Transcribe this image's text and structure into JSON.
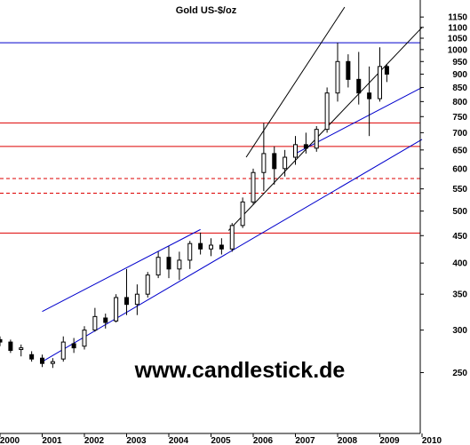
{
  "chart_data": {
    "type": "candlestick",
    "title": "Gold US-$/oz",
    "watermark": "www.candlestick.de",
    "y_scale": "log",
    "ylim": [
      220,
      1200
    ],
    "xlim": [
      "2000-01",
      "2010-01"
    ],
    "grid": false,
    "y_ticks": [
      {
        "v": 250,
        "label": "250"
      },
      {
        "v": 300,
        "label": "300"
      },
      {
        "v": 350,
        "label": "350"
      },
      {
        "v": 400,
        "label": "400"
      },
      {
        "v": 450,
        "label": "450"
      },
      {
        "v": 500,
        "label": "500"
      },
      {
        "v": 550,
        "label": "550"
      },
      {
        "v": 600,
        "label": "600"
      },
      {
        "v": 650,
        "label": "650"
      },
      {
        "v": 700,
        "label": "700"
      },
      {
        "v": 750,
        "label": "750"
      },
      {
        "v": 800,
        "label": "800"
      },
      {
        "v": 850,
        "label": "850"
      },
      {
        "v": 900,
        "label": "900"
      },
      {
        "v": 950,
        "label": "950"
      },
      {
        "v": 1000,
        "label": "1000"
      },
      {
        "v": 1050,
        "label": "1050"
      },
      {
        "v": 1100,
        "label": "1100"
      },
      {
        "v": 1150,
        "label": "1150"
      }
    ],
    "x_ticks": [
      {
        "date": "2000-01",
        "label": "2000"
      },
      {
        "date": "2001-01",
        "label": "2001"
      },
      {
        "date": "2002-01",
        "label": "2002"
      },
      {
        "date": "2003-01",
        "label": "2003"
      },
      {
        "date": "2004-01",
        "label": "2004"
      },
      {
        "date": "2005-01",
        "label": "2005"
      },
      {
        "date": "2006-01",
        "label": "2006"
      },
      {
        "date": "2007-01",
        "label": "2007"
      },
      {
        "date": "2008-01",
        "label": "2008"
      },
      {
        "date": "2009-01",
        "label": "2009"
      },
      {
        "date": "2010-01",
        "label": "2010"
      }
    ],
    "horizontal_lines": [
      {
        "y": 1030,
        "color": "#0000cc",
        "style": "solid"
      },
      {
        "y": 730,
        "color": "#dd0000",
        "style": "solid"
      },
      {
        "y": 660,
        "color": "#dd0000",
        "style": "solid"
      },
      {
        "y": 575,
        "color": "#dd0000",
        "style": "dashed"
      },
      {
        "y": 540,
        "color": "#dd0000",
        "style": "dashed"
      },
      {
        "y": 455,
        "color": "#dd0000",
        "style": "solid"
      }
    ],
    "trend_lines": [
      {
        "from": [
          "2001-01",
          325
        ],
        "to": [
          "2004-10",
          462
        ],
        "color": "#0000cc"
      },
      {
        "from": [
          "2001-01",
          262
        ],
        "to": [
          "2010-01",
          680
        ],
        "color": "#0000cc"
      },
      {
        "from": [
          "2007-01",
          640
        ],
        "to": [
          "2010-01",
          850
        ],
        "color": "#0000cc"
      },
      {
        "from": [
          "2005-11",
          630
        ],
        "to": [
          "2008-03",
          1200
        ],
        "color": "#000000"
      },
      {
        "from": [
          "2005-06",
          460
        ],
        "to": [
          "2010-01",
          1100
        ],
        "color": "#000000"
      }
    ],
    "series": [
      {
        "candles": [
          {
            "date": "2000-01",
            "o": 288,
            "h": 292,
            "l": 280,
            "c": 285
          },
          {
            "date": "2000-04",
            "o": 285,
            "h": 288,
            "l": 272,
            "c": 275
          },
          {
            "date": "2000-07",
            "o": 276,
            "h": 282,
            "l": 268,
            "c": 278
          },
          {
            "date": "2000-10",
            "o": 270,
            "h": 274,
            "l": 262,
            "c": 265
          },
          {
            "date": "2001-01",
            "o": 266,
            "h": 270,
            "l": 256,
            "c": 260
          },
          {
            "date": "2001-04",
            "o": 260,
            "h": 266,
            "l": 255,
            "c": 262
          },
          {
            "date": "2001-07",
            "o": 265,
            "h": 292,
            "l": 262,
            "c": 285
          },
          {
            "date": "2001-10",
            "o": 283,
            "h": 290,
            "l": 272,
            "c": 278
          },
          {
            "date": "2002-01",
            "o": 280,
            "h": 305,
            "l": 276,
            "c": 300
          },
          {
            "date": "2002-04",
            "o": 300,
            "h": 330,
            "l": 298,
            "c": 318
          },
          {
            "date": "2002-07",
            "o": 316,
            "h": 322,
            "l": 302,
            "c": 310
          },
          {
            "date": "2002-10",
            "o": 312,
            "h": 350,
            "l": 310,
            "c": 345
          },
          {
            "date": "2003-01",
            "o": 345,
            "h": 390,
            "l": 320,
            "c": 335
          },
          {
            "date": "2003-04",
            "o": 335,
            "h": 365,
            "l": 320,
            "c": 350
          },
          {
            "date": "2003-07",
            "o": 350,
            "h": 385,
            "l": 345,
            "c": 380
          },
          {
            "date": "2003-10",
            "o": 380,
            "h": 420,
            "l": 375,
            "c": 410
          },
          {
            "date": "2004-01",
            "o": 410,
            "h": 430,
            "l": 375,
            "c": 390
          },
          {
            "date": "2004-04",
            "o": 390,
            "h": 420,
            "l": 372,
            "c": 405
          },
          {
            "date": "2004-07",
            "o": 405,
            "h": 440,
            "l": 390,
            "c": 435
          },
          {
            "date": "2004-10",
            "o": 435,
            "h": 456,
            "l": 415,
            "c": 425
          },
          {
            "date": "2005-01",
            "o": 425,
            "h": 445,
            "l": 412,
            "c": 432
          },
          {
            "date": "2005-04",
            "o": 432,
            "h": 445,
            "l": 415,
            "c": 425
          },
          {
            "date": "2005-07",
            "o": 425,
            "h": 475,
            "l": 420,
            "c": 470
          },
          {
            "date": "2005-10",
            "o": 470,
            "h": 530,
            "l": 465,
            "c": 520
          },
          {
            "date": "2006-01",
            "o": 520,
            "h": 600,
            "l": 515,
            "c": 590
          },
          {
            "date": "2006-04",
            "o": 590,
            "h": 730,
            "l": 545,
            "c": 640
          },
          {
            "date": "2006-07",
            "o": 640,
            "h": 660,
            "l": 560,
            "c": 600
          },
          {
            "date": "2006-10",
            "o": 600,
            "h": 650,
            "l": 580,
            "c": 630
          },
          {
            "date": "2007-01",
            "o": 630,
            "h": 690,
            "l": 610,
            "c": 665
          },
          {
            "date": "2007-04",
            "o": 665,
            "h": 700,
            "l": 640,
            "c": 655
          },
          {
            "date": "2007-07",
            "o": 655,
            "h": 720,
            "l": 645,
            "c": 710
          },
          {
            "date": "2007-10",
            "o": 710,
            "h": 850,
            "l": 700,
            "c": 830
          },
          {
            "date": "2008-01",
            "o": 830,
            "h": 1030,
            "l": 800,
            "c": 950
          },
          {
            "date": "2008-04",
            "o": 950,
            "h": 980,
            "l": 850,
            "c": 880
          },
          {
            "date": "2008-07",
            "o": 880,
            "h": 990,
            "l": 790,
            "c": 830
          },
          {
            "date": "2008-10",
            "o": 830,
            "h": 930,
            "l": 690,
            "c": 810
          },
          {
            "date": "2009-01",
            "o": 810,
            "h": 1010,
            "l": 800,
            "c": 930
          },
          {
            "date": "2009-03",
            "o": 930,
            "h": 940,
            "l": 870,
            "c": 900
          }
        ]
      }
    ]
  }
}
